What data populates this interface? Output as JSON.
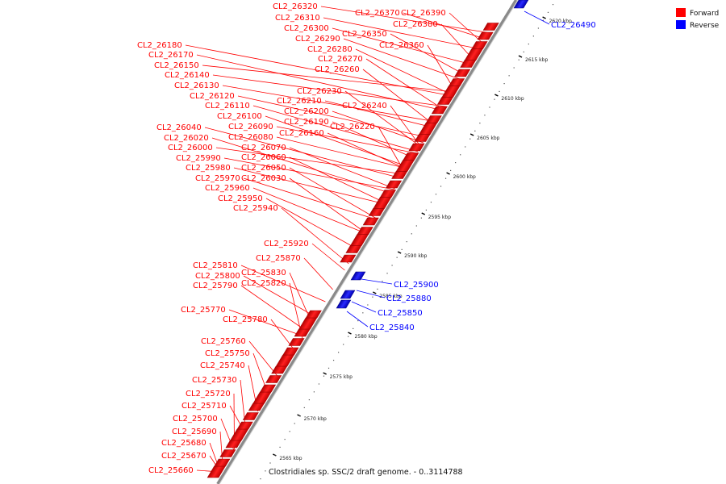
{
  "caption": "Clostridiales sp. SSC/2 draft genome. - 0..3114788",
  "legend": [
    {
      "label": "Forward",
      "color": "#ff0000"
    },
    {
      "label": "Reverse",
      "color": "#0000ff"
    }
  ],
  "colors": {
    "forward": "#ff0000",
    "reverse": "#0000ff",
    "backbone": "#8a8a8a"
  },
  "ticks": [
    "2565 kbp",
    "2570 kbp",
    "2575 kbp",
    "2580 kbp",
    "2585 kbp",
    "2590 kbp",
    "2595 kbp",
    "2600 kbp",
    "2605 kbp",
    "2610 kbp",
    "2615 kbp",
    "2620 kbp"
  ],
  "forward_labels": [
    "CL2_26320",
    "CL2_26310",
    "CL2_26300",
    "CL2_26290",
    "CL2_26280",
    "CL2_26270",
    "CL2_26260",
    "CL2_26370",
    "CL2_26390",
    "CL2_26380",
    "CL2_26350",
    "CL2_26360",
    "CL2_26180",
    "CL2_26170",
    "CL2_26150",
    "CL2_26140",
    "CL2_26130",
    "CL2_26120",
    "CL2_26110",
    "CL2_26100",
    "CL2_26230",
    "CL2_26210",
    "CL2_26200",
    "CL2_26190",
    "CL2_26240",
    "CL2_26220",
    "CL2_26040",
    "CL2_26020",
    "CL2_26000",
    "CL2_25990",
    "CL2_25980",
    "CL2_25970",
    "CL2_25960",
    "CL2_25950",
    "CL2_25940",
    "CL2_26090",
    "CL2_26080",
    "CL2_26160",
    "CL2_26070",
    "CL2_26060",
    "CL2_26050",
    "CL2_26030",
    "CL2_25920",
    "CL2_25870",
    "CL2_25810",
    "CL2_25800",
    "CL2_25790",
    "CL2_25830",
    "CL2_25820",
    "CL2_25770",
    "CL2_25780",
    "CL2_25760",
    "CL2_25750",
    "CL2_25740",
    "CL2_25730",
    "CL2_25720",
    "CL2_25710",
    "CL2_25700",
    "CL2_25690",
    "CL2_25680",
    "CL2_25670",
    "CL2_25660"
  ],
  "reverse_labels": [
    "CL2_26490",
    "CL2_25900",
    "CL2_25880",
    "CL2_25850",
    "CL2_25840"
  ]
}
